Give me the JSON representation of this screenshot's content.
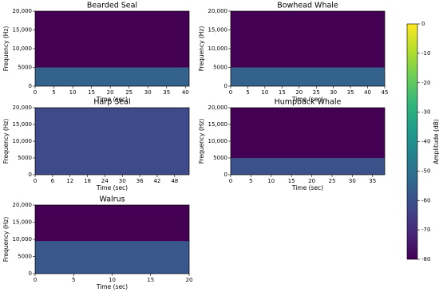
{
  "chart_data": [
    {
      "type": "spectrogram",
      "title": "Bearded Seal",
      "xlabel": "Time (sec)",
      "ylabel": "Frequency (Hz)",
      "xlim": [
        0,
        41
      ],
      "xticks": [
        0,
        5,
        10,
        15,
        20,
        25,
        30,
        35,
        40
      ],
      "ylim": [
        0,
        20000
      ],
      "yticks": [
        0,
        5000,
        {
          "value": 10000,
          "label": "10,000"
        },
        {
          "value": 15000,
          "label": "15,000"
        },
        {
          "value": 20000,
          "label": "20,000"
        }
      ],
      "bandwidth": 5000,
      "level": -55
    },
    {
      "type": "spectrogram",
      "title": "Bowhead Whale",
      "xlabel": "Time (sec)",
      "ylabel": "Frequency (Hz)",
      "xlim": [
        0,
        45
      ],
      "xticks": [
        0,
        5,
        10,
        15,
        20,
        25,
        30,
        35,
        40,
        45
      ],
      "ylim": [
        0,
        20000
      ],
      "yticks": [
        0,
        5000,
        {
          "value": 10000,
          "label": "10,000"
        },
        {
          "value": 15000,
          "label": "15,000"
        },
        {
          "value": 20000,
          "label": "20,000"
        }
      ],
      "bandwidth": 5000,
      "level": -55
    },
    {
      "type": "spectrogram",
      "title": "Harp Seal",
      "xlabel": "Time (sec)",
      "ylabel": "Frequency (Hz)",
      "xlim": [
        0,
        53
      ],
      "xticks": [
        0,
        6,
        12,
        18,
        24,
        30,
        36,
        42,
        48
      ],
      "ylim": [
        0,
        20000
      ],
      "yticks": [
        0,
        5000,
        {
          "value": 10000,
          "label": "10,000"
        },
        {
          "value": 15000,
          "label": "15,000"
        },
        {
          "value": 20000,
          "label": "20,000"
        }
      ],
      "bandwidth": 20000,
      "level": -62
    },
    {
      "type": "spectrogram",
      "title": "Humpback Whale",
      "xlabel": "Time (sec)",
      "ylabel": "Frequency (Hz)",
      "xlim": [
        0,
        38
      ],
      "xticks": [
        0,
        5,
        10,
        15,
        20,
        25,
        30,
        35
      ],
      "ylim": [
        0,
        20000
      ],
      "yticks": [
        0,
        5000,
        {
          "value": 10000,
          "label": "10,000"
        },
        {
          "value": 15000,
          "label": "15,000"
        },
        {
          "value": 20000,
          "label": "20,000"
        }
      ],
      "bandwidth": 5000,
      "level": -60
    },
    {
      "type": "spectrogram",
      "title": "Walrus",
      "xlabel": "Time (sec)",
      "ylabel": "Frequency (Hz)",
      "xlim": [
        0,
        20
      ],
      "xticks": [
        0,
        5,
        10,
        15,
        20
      ],
      "ylim": [
        0,
        20000
      ],
      "yticks": [
        0,
        5000,
        {
          "value": 10000,
          "label": "10,000"
        },
        {
          "value": 15000,
          "label": "15,000"
        },
        {
          "value": 20000,
          "label": "20,000"
        }
      ],
      "bandwidth": 9500,
      "level": -58
    },
    {
      "type": "colorbar",
      "label": "Amplitude (dB)",
      "clim": [
        -80,
        0
      ],
      "ticks": [
        0,
        -10,
        -20,
        -30,
        -40,
        -50,
        -60,
        -70,
        -80
      ]
    }
  ]
}
